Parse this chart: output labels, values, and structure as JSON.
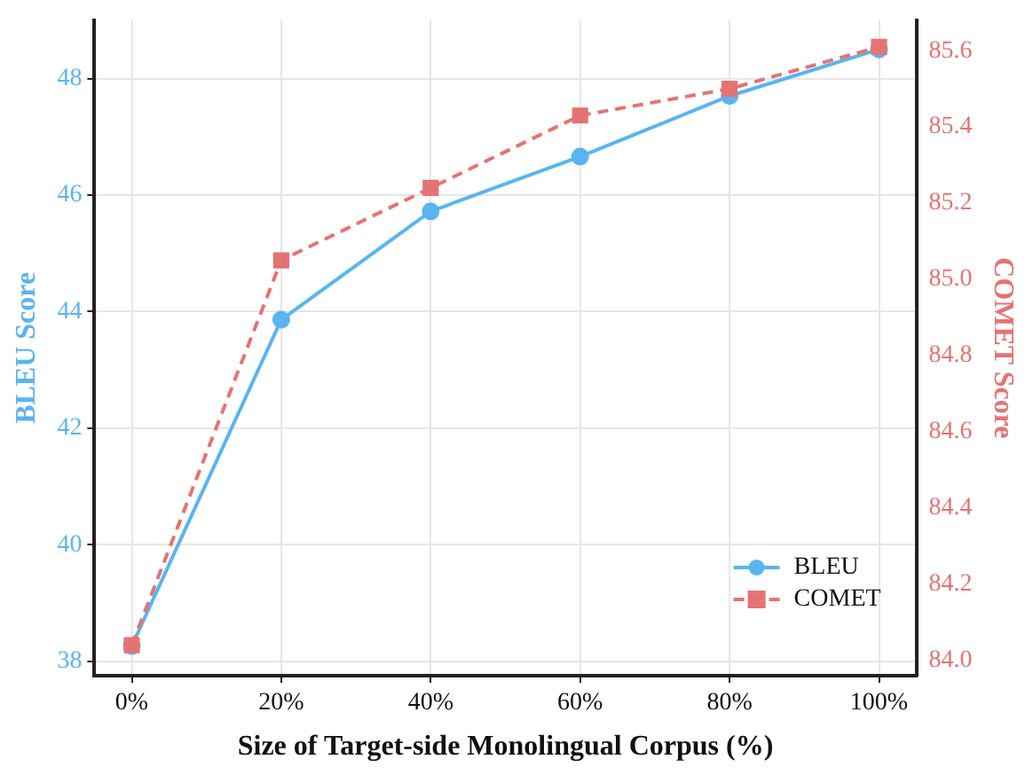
{
  "chart_data": {
    "type": "line",
    "xlabel": "Size of Target-side Monolingual Corpus (%)",
    "ylabel": "BLEU Score",
    "y2label": "COMET Score",
    "x": [
      0,
      20,
      40,
      60,
      80,
      100
    ],
    "xlim": [
      -5,
      105
    ],
    "xticks": [
      {
        "value": 0,
        "label": "0%"
      },
      {
        "value": 20,
        "label": "20%"
      },
      {
        "value": 40,
        "label": "40%"
      },
      {
        "value": 60,
        "label": "60%"
      },
      {
        "value": 80,
        "label": "80%"
      },
      {
        "value": 100,
        "label": "100%"
      }
    ],
    "ylim": [
      37.75,
      49.0
    ],
    "yticks": [
      38,
      40,
      42,
      44,
      46,
      48
    ],
    "y2lim": [
      83.96,
      85.68
    ],
    "y2ticks": [
      {
        "value": 84.0,
        "label": "84.0"
      },
      {
        "value": 84.2,
        "label": "84.2"
      },
      {
        "value": 84.4,
        "label": "84.4"
      },
      {
        "value": 84.6,
        "label": "84.6"
      },
      {
        "value": 84.8,
        "label": "84.8"
      },
      {
        "value": 85.0,
        "label": "85.0"
      },
      {
        "value": 85.2,
        "label": "85.2"
      },
      {
        "value": 85.4,
        "label": "85.4"
      },
      {
        "value": 85.6,
        "label": "85.6"
      }
    ],
    "series": [
      {
        "name": "BLEU",
        "color": "#5ab4f0",
        "values": [
          38.26,
          43.86,
          45.72,
          46.66,
          47.7,
          48.5
        ],
        "marker": "circle",
        "line_style": "solid"
      },
      {
        "name": "COMET",
        "color": "#e57373",
        "values": [
          84.04,
          85.05,
          85.24,
          85.43,
          85.5,
          85.61
        ],
        "axis": "y2",
        "marker": "square",
        "line_style": "dashed"
      }
    ],
    "grid": true,
    "legend": "bottom right"
  }
}
